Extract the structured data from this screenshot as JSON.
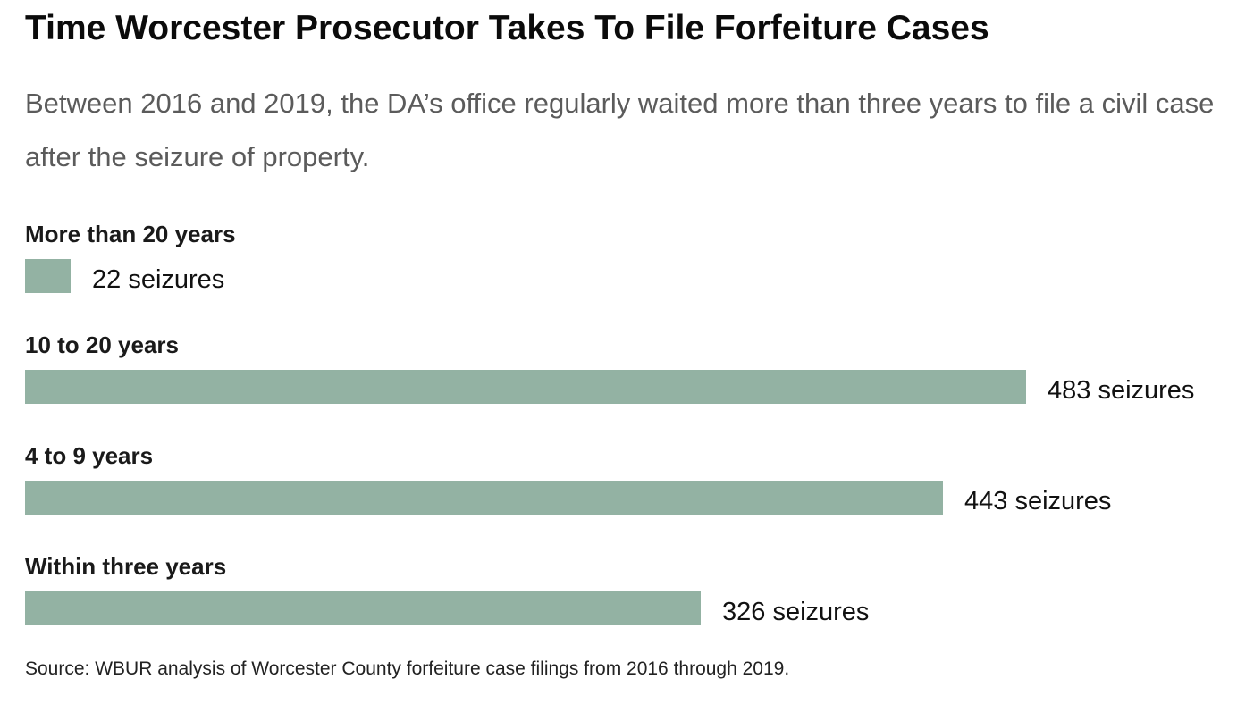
{
  "header": {
    "title": "Time Worcester Prosecutor Takes To File Forfeiture Cases",
    "subtitle": "Between 2016 and 2019, the DA’s office regularly waited more than three years to file a civil case after the seizure of property."
  },
  "footer": {
    "source": "Source: WBUR analysis of Worcester County forfeiture case filings from 2016 through 2019."
  },
  "chart_data": {
    "type": "bar",
    "orientation": "horizontal",
    "title": "Time Worcester Prosecutor Takes To File Forfeiture Cases",
    "subtitle": "Between 2016 and 2019, the DA’s office regularly waited more than three years to file a civil case after the seizure of property.",
    "categories": [
      "More than 20 years",
      "10 to 20 years",
      "4 to 9 years",
      "Within three years"
    ],
    "values": [
      22,
      483,
      443,
      326
    ],
    "value_labels": [
      "22 seizures",
      "483 seizures",
      "443 seizures",
      "326 seizures"
    ],
    "xlabel": "",
    "ylabel": "",
    "xlim": [
      0,
      483
    ],
    "grid": false,
    "legend": "none",
    "bar_color": "#93b2a3"
  }
}
